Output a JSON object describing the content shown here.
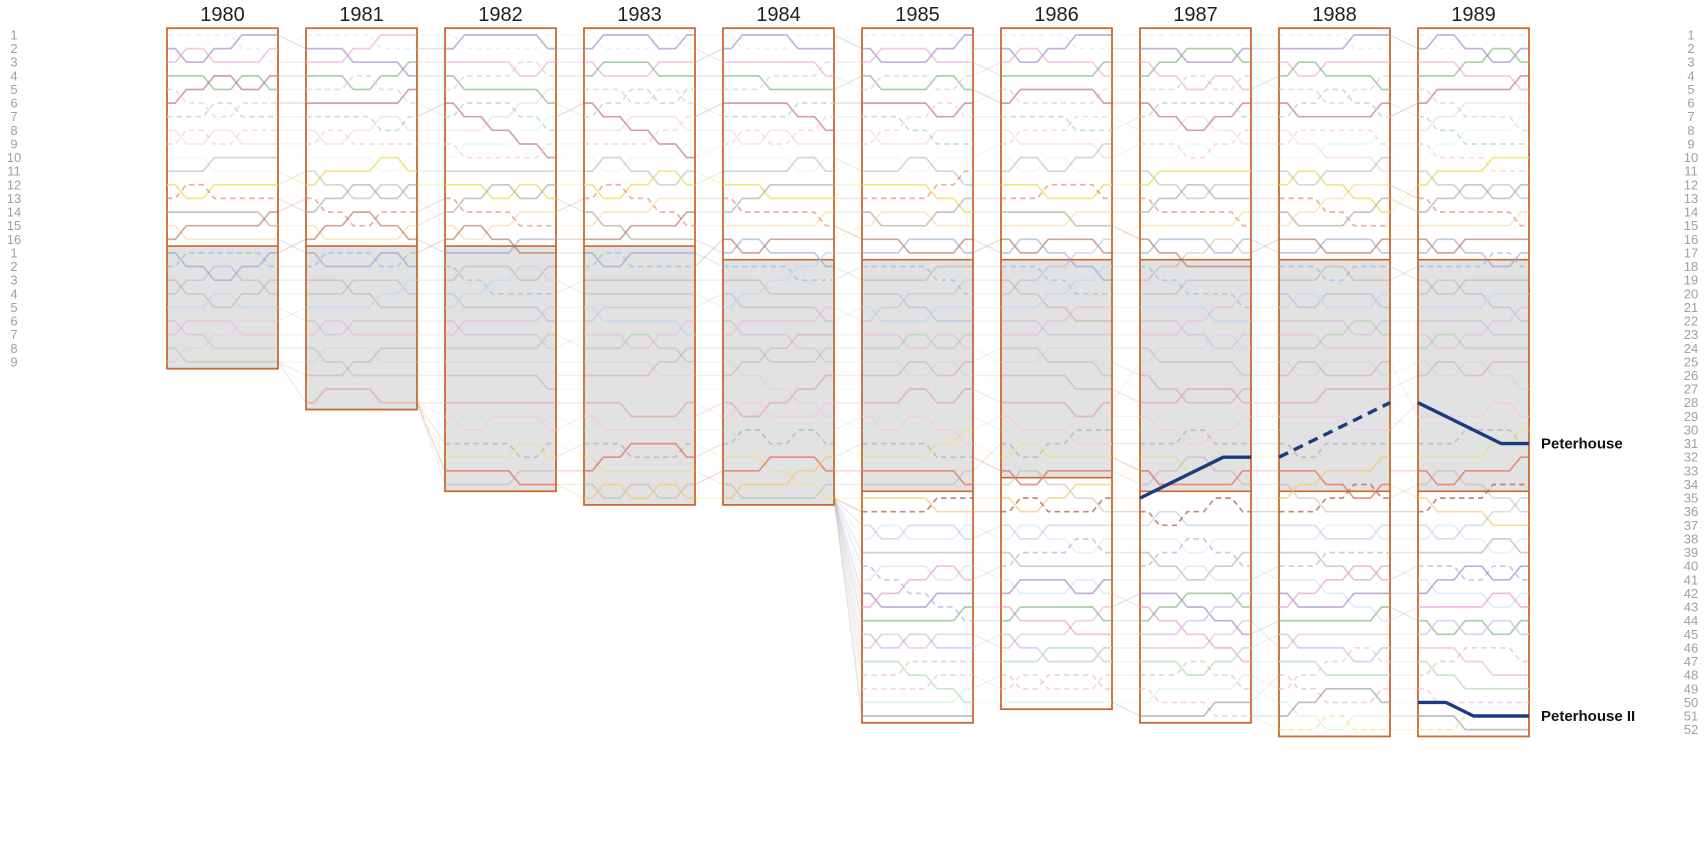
{
  "chart_data": {
    "type": "line",
    "chart_kind": "bumps-race-chart",
    "title": "",
    "race_days": 4,
    "years": [
      {
        "label": "1980",
        "crews": 25,
        "divisions": [
          {
            "from": 1,
            "to": 16,
            "shaded": false
          },
          {
            "from": 17,
            "to": 25,
            "shaded": true
          }
        ]
      },
      {
        "label": "1981",
        "crews": 28,
        "divisions": [
          {
            "from": 1,
            "to": 16,
            "shaded": false
          },
          {
            "from": 17,
            "to": 28,
            "shaded": true
          }
        ]
      },
      {
        "label": "1982",
        "crews": 34,
        "divisions": [
          {
            "from": 1,
            "to": 16,
            "shaded": false
          },
          {
            "from": 17,
            "to": 34,
            "shaded": true
          }
        ]
      },
      {
        "label": "1983",
        "crews": 35,
        "divisions": [
          {
            "from": 1,
            "to": 16,
            "shaded": false
          },
          {
            "from": 17,
            "to": 35,
            "shaded": true
          }
        ]
      },
      {
        "label": "1984",
        "crews": 35,
        "divisions": [
          {
            "from": 1,
            "to": 17,
            "shaded": false
          },
          {
            "from": 18,
            "to": 35,
            "shaded": true
          }
        ]
      },
      {
        "label": "1985",
        "crews": 51,
        "divisions": [
          {
            "from": 1,
            "to": 17,
            "shaded": false
          },
          {
            "from": 18,
            "to": 34,
            "shaded": true
          },
          {
            "from": 35,
            "to": 51,
            "shaded": false
          }
        ]
      },
      {
        "label": "1986",
        "crews": 50,
        "divisions": [
          {
            "from": 1,
            "to": 17,
            "shaded": false
          },
          {
            "from": 18,
            "to": 33,
            "shaded": true
          },
          {
            "from": 34,
            "to": 50,
            "shaded": false
          }
        ]
      },
      {
        "label": "1987",
        "crews": 51,
        "divisions": [
          {
            "from": 1,
            "to": 17,
            "shaded": false
          },
          {
            "from": 18,
            "to": 34,
            "shaded": true
          },
          {
            "from": 35,
            "to": 51,
            "shaded": false
          }
        ]
      },
      {
        "label": "1988",
        "crews": 52,
        "divisions": [
          {
            "from": 1,
            "to": 17,
            "shaded": false
          },
          {
            "from": 18,
            "to": 34,
            "shaded": true
          },
          {
            "from": 35,
            "to": 52,
            "shaded": false
          }
        ]
      },
      {
        "label": "1989",
        "crews": 52,
        "divisions": [
          {
            "from": 1,
            "to": 17,
            "shaded": false
          },
          {
            "from": 18,
            "to": 34,
            "shaded": true
          },
          {
            "from": 35,
            "to": 52,
            "shaded": false
          }
        ]
      }
    ],
    "left_axis": {
      "groups": [
        {
          "start_row": 1,
          "labels": [
            "1",
            "2",
            "3",
            "4",
            "5",
            "6",
            "7",
            "8",
            "9",
            "10",
            "11",
            "12",
            "13",
            "14",
            "15",
            "16"
          ]
        },
        {
          "start_row": 17,
          "labels": [
            "1",
            "2",
            "3",
            "4",
            "5",
            "6",
            "7",
            "8",
            "9"
          ]
        }
      ]
    },
    "right_axis": {
      "start_row": 1,
      "labels": [
        "1",
        "2",
        "3",
        "4",
        "5",
        "6",
        "7",
        "8",
        "9",
        "10",
        "11",
        "12",
        "13",
        "14",
        "15",
        "16",
        "17",
        "18",
        "19",
        "20",
        "21",
        "22",
        "23",
        "24",
        "25",
        "26",
        "27",
        "28",
        "29",
        "30",
        "31",
        "32",
        "33",
        "34",
        "35",
        "36",
        "37",
        "38",
        "39",
        "40",
        "41",
        "42",
        "43",
        "44",
        "45",
        "46",
        "47",
        "48",
        "49",
        "50",
        "51",
        "52"
      ]
    },
    "series": [
      {
        "name": "Peterhouse",
        "label": "Peterhouse",
        "label_row": 31,
        "runs": [
          {
            "year": "1987",
            "style": "solid",
            "points": [
              [
                0,
                35
              ],
              [
                3,
                32
              ],
              [
                4,
                32
              ]
            ]
          },
          {
            "year": "1988",
            "style": "dashed",
            "points": [
              [
                0,
                32
              ],
              [
                4,
                28
              ]
            ]
          },
          {
            "year": "1989",
            "style": "solid",
            "points": [
              [
                0,
                28
              ],
              [
                3,
                31
              ],
              [
                4,
                31
              ]
            ]
          }
        ]
      },
      {
        "name": "Peterhouse II",
        "label": "Peterhouse II",
        "label_row": 51,
        "runs": [
          {
            "year": "1989",
            "style": "solid",
            "points": [
              [
                0,
                50
              ],
              [
                1,
                50
              ],
              [
                2,
                51
              ],
              [
                4,
                51
              ]
            ]
          }
        ]
      }
    ],
    "background_crews": {
      "description": "Unlabeled crews drawn as faded pastel lines (positions not labeled in source image); generated deterministically from seed",
      "seed": 20,
      "swap_probability": 0.42,
      "dashed_fraction": 0.17,
      "alpha_min": 0.18,
      "alpha_max": 0.9
    }
  },
  "style": {
    "background": "#ffffff",
    "box_border_color": "#c96a2e",
    "shaded_fill": "#e2e2e2",
    "axis_label_color": "#a0a0a0",
    "year_label_color": "#1f1f1f",
    "highlight_color": "#1c3c82",
    "palette": [
      "#8f8f8f",
      "#b3aaa2",
      "#7d8bbf",
      "#98a2d8",
      "#ee9ecd",
      "#c06898",
      "#f5c8e3",
      "#ece05f",
      "#f2c35e",
      "#85bdec",
      "#bcd8f2",
      "#7fb87f",
      "#bfe3bf",
      "#b9e8d2",
      "#e77a65",
      "#b06050",
      "#a3775a",
      "#9f86cc",
      "#d9c9ec",
      "#e0a0a0"
    ]
  }
}
